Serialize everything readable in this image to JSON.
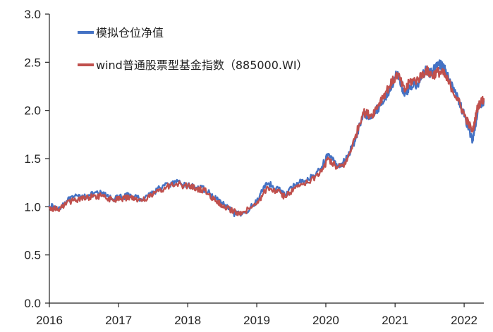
{
  "chart_data": {
    "type": "line",
    "title": "",
    "xlabel": "",
    "ylabel": "",
    "x_tick_labels": [
      "2016",
      "2017",
      "2018",
      "2019",
      "2020",
      "2021",
      "2022"
    ],
    "y_tick_labels": [
      "0.0",
      "0.5",
      "1.0",
      "1.5",
      "2.0",
      "2.5",
      "3.0"
    ],
    "ylim": [
      0,
      3.0
    ],
    "xlim": [
      "2016-01-01",
      "2022-04-15"
    ],
    "grid": false,
    "legend_position": "top-left",
    "series": [
      {
        "name": "模拟仓位净值",
        "color": "#4472C4",
        "x": [
          "2016-01-01",
          "2016-02-15",
          "2016-04-01",
          "2016-06-01",
          "2016-08-01",
          "2016-10-01",
          "2016-12-01",
          "2017-01-15",
          "2017-03-01",
          "2017-05-01",
          "2017-07-01",
          "2017-09-01",
          "2017-11-01",
          "2018-01-01",
          "2018-02-15",
          "2018-04-01",
          "2018-06-01",
          "2018-07-15",
          "2018-09-01",
          "2018-10-15",
          "2019-01-01",
          "2019-02-20",
          "2019-04-15",
          "2019-06-01",
          "2019-08-01",
          "2019-10-01",
          "2019-12-01",
          "2020-01-15",
          "2020-03-01",
          "2020-04-15",
          "2020-06-01",
          "2020-07-15",
          "2020-09-01",
          "2020-10-15",
          "2020-12-01",
          "2021-01-15",
          "2021-02-20",
          "2021-03-20",
          "2021-05-01",
          "2021-06-15",
          "2021-07-15",
          "2021-08-15",
          "2021-09-15",
          "2021-10-15",
          "2021-12-01",
          "2022-01-10",
          "2022-02-15",
          "2022-03-15",
          "2022-04-15"
        ],
        "y": [
          1.01,
          0.98,
          1.06,
          1.11,
          1.12,
          1.14,
          1.08,
          1.1,
          1.12,
          1.08,
          1.15,
          1.22,
          1.25,
          1.22,
          1.2,
          1.18,
          1.08,
          1.02,
          0.93,
          0.92,
          1.05,
          1.25,
          1.2,
          1.12,
          1.25,
          1.28,
          1.38,
          1.55,
          1.42,
          1.48,
          1.68,
          1.95,
          1.95,
          2.05,
          2.2,
          2.4,
          2.15,
          2.25,
          2.28,
          2.42,
          2.38,
          2.5,
          2.45,
          2.3,
          2.12,
          1.9,
          1.68,
          2.02,
          2.1
        ]
      },
      {
        "name": "wind普通股票型基金指数（885000.WI）",
        "color": "#C0504D",
        "x": [
          "2016-01-01",
          "2016-02-15",
          "2016-04-01",
          "2016-06-01",
          "2016-08-01",
          "2016-10-01",
          "2016-12-01",
          "2017-01-15",
          "2017-03-01",
          "2017-05-01",
          "2017-07-01",
          "2017-09-01",
          "2017-11-01",
          "2018-01-01",
          "2018-02-15",
          "2018-04-01",
          "2018-06-01",
          "2018-07-15",
          "2018-09-01",
          "2018-10-15",
          "2019-01-01",
          "2019-02-20",
          "2019-04-15",
          "2019-06-01",
          "2019-08-01",
          "2019-10-01",
          "2019-12-01",
          "2020-01-15",
          "2020-03-01",
          "2020-04-15",
          "2020-06-01",
          "2020-07-15",
          "2020-09-01",
          "2020-10-15",
          "2020-12-01",
          "2021-01-15",
          "2021-02-20",
          "2021-03-20",
          "2021-05-01",
          "2021-06-15",
          "2021-07-15",
          "2021-08-15",
          "2021-09-15",
          "2021-10-15",
          "2021-12-01",
          "2022-01-10",
          "2022-02-15",
          "2022-03-15",
          "2022-04-15"
        ],
        "y": [
          0.99,
          0.97,
          1.04,
          1.08,
          1.1,
          1.11,
          1.07,
          1.08,
          1.1,
          1.06,
          1.12,
          1.2,
          1.24,
          1.21,
          1.19,
          1.17,
          1.06,
          1.0,
          0.95,
          0.93,
          1.03,
          1.18,
          1.17,
          1.1,
          1.22,
          1.25,
          1.36,
          1.5,
          1.4,
          1.45,
          1.7,
          1.98,
          1.95,
          2.1,
          2.25,
          2.38,
          2.2,
          2.3,
          2.32,
          2.42,
          2.36,
          2.4,
          2.38,
          2.28,
          2.1,
          1.92,
          1.78,
          2.05,
          2.12
        ]
      }
    ]
  }
}
